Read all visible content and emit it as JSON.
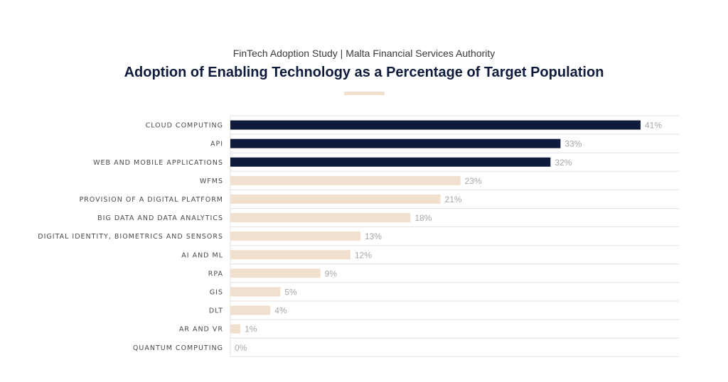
{
  "header": {
    "subtitle": "FinTech Adoption Study | Malta Financial Services Authority",
    "title": "Adoption of Enabling Technology as a Percentage of Target Population"
  },
  "colors": {
    "highlight": "#0f1b3d",
    "default": "#f1e0cd",
    "accent": "#f1e0cd",
    "grid": "#e2e2e2"
  },
  "chart_data": {
    "type": "bar",
    "orientation": "horizontal",
    "title": "Adoption of Enabling Technology as a Percentage of Target Population",
    "subtitle": "FinTech Adoption Study | Malta Financial Services Authority",
    "xlabel": "",
    "ylabel": "",
    "xlim": [
      0,
      45
    ],
    "grid": true,
    "categories": [
      "CLOUD COMPUTING",
      "API",
      "WEB AND MOBILE APPLICATIONS",
      "WFMS",
      "PROVISION OF A DIGITAL PLATFORM",
      "BIG DATA AND DATA ANALYTICS",
      "DIGITAL IDENTITY, BIOMETRICS AND SENSORS",
      "AI AND ML",
      "RPA",
      "GIS",
      "DLT",
      "AR AND VR",
      "QUANTUM COMPUTING"
    ],
    "values": [
      41,
      33,
      32,
      23,
      21,
      18,
      13,
      12,
      9,
      5,
      4,
      1,
      0
    ],
    "value_labels": [
      "41%",
      "33%",
      "32%",
      "23%",
      "21%",
      "18%",
      "13%",
      "12%",
      "9%",
      "5%",
      "4%",
      "1%",
      "0%"
    ],
    "highlighted": [
      true,
      true,
      true,
      false,
      false,
      false,
      false,
      false,
      false,
      false,
      false,
      false,
      false
    ]
  }
}
